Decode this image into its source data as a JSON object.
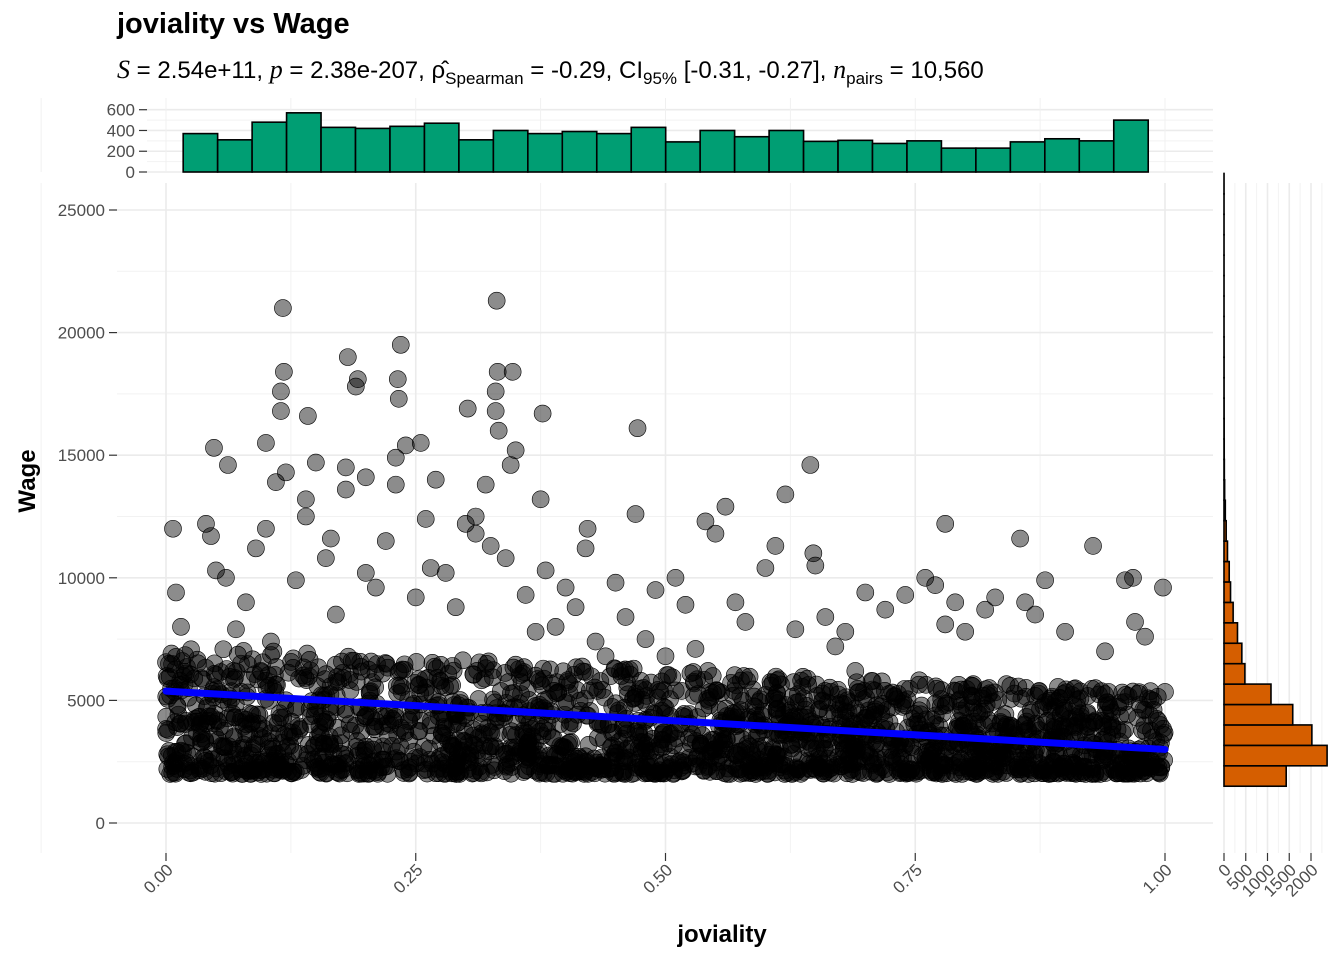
{
  "chart_data": {
    "type": "scatter",
    "title": "joviality vs Wage",
    "subtitle": {
      "S_label": "S",
      "S_value": "2.54e+11",
      "p_label": "p",
      "p_value": "2.38e-207",
      "rho_symbol": "ρ̂",
      "rho_sub": "Spearman",
      "rho_value": "-0.29",
      "ci_label": "CI",
      "ci_sub": "95%",
      "ci_value": "[-0.31, -0.27]",
      "n_label": "n",
      "n_sub": "pairs",
      "n_value": "10,560"
    },
    "xlabel": "joviality",
    "ylabel": "Wage",
    "xlim": [
      -0.05,
      1.05
    ],
    "ylim": [
      -1200,
      26000
    ],
    "x_ticks": [
      "0.00",
      "0.25",
      "0.50",
      "0.75",
      "1.00"
    ],
    "y_ticks": [
      "0",
      "5000",
      "10000",
      "15000",
      "20000",
      "25000"
    ],
    "point_color": "#000000",
    "trend_line": {
      "color": "#0000ff",
      "points": [
        [
          0.0,
          5380
        ],
        [
          1.0,
          3000
        ]
      ]
    },
    "top_histogram": {
      "fill": "#009e73",
      "y_ticks": [
        "0",
        "200",
        "400",
        "600"
      ],
      "ylim": [
        0,
        620
      ],
      "bin_start": 0.0172,
      "bin_width": 0.0345,
      "counts": [
        370,
        310,
        480,
        570,
        430,
        420,
        440,
        470,
        310,
        400,
        370,
        390,
        370,
        430,
        290,
        400,
        340,
        400,
        295,
        305,
        275,
        300,
        230,
        230,
        290,
        320,
        300,
        500
      ]
    },
    "right_histogram": {
      "fill": "#d55e00",
      "x_ticks": [
        "0",
        "500",
        "1000",
        "1500",
        "2000"
      ],
      "xlim": [
        0,
        2400
      ],
      "bin_start": 1500,
      "bin_width": 833,
      "counts": [
        1430,
        2370,
        2020,
        1580,
        1080,
        480,
        410,
        310,
        210,
        150,
        120,
        80,
        50,
        30,
        15,
        8,
        5,
        4,
        3,
        2,
        2,
        2,
        1,
        1,
        1,
        1,
        1,
        1,
        1,
        1
      ]
    },
    "grid": true,
    "legend": "none",
    "points": [
      [
        0.007,
        12000
      ],
      [
        0.01,
        9400
      ],
      [
        0.015,
        8000
      ],
      [
        0.02,
        6100
      ],
      [
        0.03,
        4800
      ],
      [
        0.04,
        12200
      ],
      [
        0.045,
        11700
      ],
      [
        0.048,
        15300
      ],
      [
        0.05,
        10300
      ],
      [
        0.06,
        10000
      ],
      [
        0.062,
        14600
      ],
      [
        0.07,
        7900
      ],
      [
        0.075,
        6500
      ],
      [
        0.08,
        9000
      ],
      [
        0.09,
        11200
      ],
      [
        0.095,
        6200
      ],
      [
        0.1,
        15500
      ],
      [
        0.1,
        12000
      ],
      [
        0.105,
        7400
      ],
      [
        0.11,
        13900
      ],
      [
        0.115,
        17600
      ],
      [
        0.115,
        16800
      ],
      [
        0.117,
        21000
      ],
      [
        0.118,
        18400
      ],
      [
        0.12,
        14300
      ],
      [
        0.13,
        9900
      ],
      [
        0.14,
        12500
      ],
      [
        0.14,
        13200
      ],
      [
        0.142,
        16600
      ],
      [
        0.15,
        14700
      ],
      [
        0.16,
        10800
      ],
      [
        0.165,
        11600
      ],
      [
        0.17,
        8500
      ],
      [
        0.18,
        13600
      ],
      [
        0.18,
        14500
      ],
      [
        0.182,
        19000
      ],
      [
        0.19,
        17800
      ],
      [
        0.192,
        18100
      ],
      [
        0.2,
        14100
      ],
      [
        0.2,
        10200
      ],
      [
        0.21,
        9600
      ],
      [
        0.22,
        11500
      ],
      [
        0.23,
        13800
      ],
      [
        0.23,
        14900
      ],
      [
        0.232,
        18100
      ],
      [
        0.233,
        17300
      ],
      [
        0.235,
        19500
      ],
      [
        0.24,
        15400
      ],
      [
        0.25,
        9200
      ],
      [
        0.255,
        15500
      ],
      [
        0.26,
        12400
      ],
      [
        0.265,
        10400
      ],
      [
        0.27,
        14000
      ],
      [
        0.28,
        10200
      ],
      [
        0.29,
        8800
      ],
      [
        0.3,
        12200
      ],
      [
        0.302,
        16900
      ],
      [
        0.31,
        12500
      ],
      [
        0.31,
        11800
      ],
      [
        0.32,
        13800
      ],
      [
        0.325,
        11300
      ],
      [
        0.33,
        17600
      ],
      [
        0.33,
        16800
      ],
      [
        0.331,
        21300
      ],
      [
        0.332,
        18400
      ],
      [
        0.333,
        16000
      ],
      [
        0.34,
        10800
      ],
      [
        0.345,
        14600
      ],
      [
        0.347,
        18400
      ],
      [
        0.35,
        15200
      ],
      [
        0.36,
        9300
      ],
      [
        0.37,
        7800
      ],
      [
        0.375,
        13200
      ],
      [
        0.377,
        16700
      ],
      [
        0.38,
        10300
      ],
      [
        0.39,
        8000
      ],
      [
        0.4,
        9600
      ],
      [
        0.41,
        8800
      ],
      [
        0.42,
        11200
      ],
      [
        0.422,
        12000
      ],
      [
        0.43,
        7400
      ],
      [
        0.44,
        6800
      ],
      [
        0.45,
        9800
      ],
      [
        0.46,
        8400
      ],
      [
        0.47,
        12600
      ],
      [
        0.472,
        16100
      ],
      [
        0.48,
        7500
      ],
      [
        0.49,
        9500
      ],
      [
        0.5,
        6800
      ],
      [
        0.51,
        10000
      ],
      [
        0.52,
        8900
      ],
      [
        0.53,
        7100
      ],
      [
        0.54,
        12300
      ],
      [
        0.55,
        11800
      ],
      [
        0.56,
        12900
      ],
      [
        0.57,
        9000
      ],
      [
        0.58,
        8200
      ],
      [
        0.6,
        10400
      ],
      [
        0.61,
        11300
      ],
      [
        0.62,
        13400
      ],
      [
        0.63,
        7900
      ],
      [
        0.645,
        14600
      ],
      [
        0.648,
        11000
      ],
      [
        0.65,
        10500
      ],
      [
        0.66,
        8400
      ],
      [
        0.67,
        7200
      ],
      [
        0.68,
        7800
      ],
      [
        0.69,
        6200
      ],
      [
        0.7,
        9400
      ],
      [
        0.72,
        8700
      ],
      [
        0.74,
        9300
      ],
      [
        0.76,
        10000
      ],
      [
        0.77,
        9700
      ],
      [
        0.78,
        12200
      ],
      [
        0.78,
        8100
      ],
      [
        0.79,
        9000
      ],
      [
        0.8,
        7800
      ],
      [
        0.82,
        8700
      ],
      [
        0.83,
        9200
      ],
      [
        0.855,
        11600
      ],
      [
        0.86,
        9000
      ],
      [
        0.87,
        8500
      ],
      [
        0.88,
        9900
      ],
      [
        0.9,
        7800
      ],
      [
        0.928,
        11300
      ],
      [
        0.94,
        7000
      ],
      [
        0.96,
        9900
      ],
      [
        0.968,
        10000
      ],
      [
        0.97,
        8200
      ],
      [
        0.98,
        7600
      ],
      [
        0.998,
        9600
      ]
    ]
  }
}
